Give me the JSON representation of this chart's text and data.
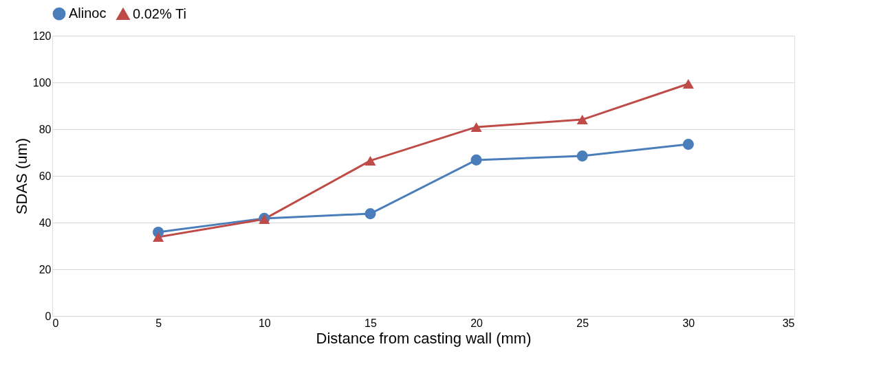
{
  "chart_data": {
    "type": "line",
    "xlabel": "Distance from casting wall (mm)",
    "ylabel": "SDAS (um)",
    "x": [
      5,
      10,
      15,
      20,
      25,
      30
    ],
    "series": [
      {
        "name": "Alinoc",
        "color": "#4a7ebb",
        "marker": "circle",
        "values": [
          35.9,
          41.8,
          43.8,
          66.8,
          68.5,
          73.5
        ]
      },
      {
        "name": "0.02% Ti",
        "color": "#be4b48",
        "marker": "triangle",
        "values": [
          33.8,
          41.5,
          66.5,
          80.9,
          84.1,
          99.4
        ]
      }
    ],
    "xlim": [
      0,
      35
    ],
    "xticks": [
      0,
      5,
      10,
      15,
      20,
      25,
      30,
      35
    ],
    "ylim": [
      0,
      120
    ],
    "yticks": [
      0,
      20,
      40,
      60,
      80,
      100,
      120
    ],
    "grid": "y",
    "legend": "top",
    "line_style": "solid"
  }
}
